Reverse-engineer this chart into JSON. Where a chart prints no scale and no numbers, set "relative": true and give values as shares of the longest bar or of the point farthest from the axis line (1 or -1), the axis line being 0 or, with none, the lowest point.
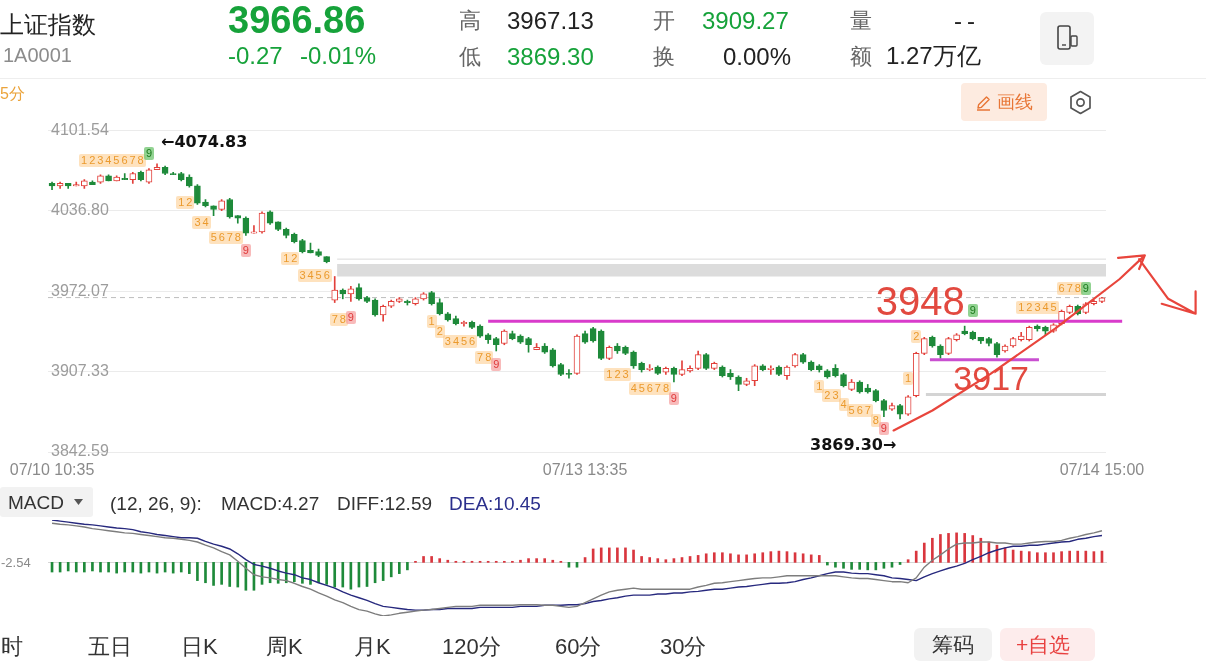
{
  "chart_data": [
    {
      "type": "candlestick",
      "title": "上证指数",
      "subtitle": "1A0001",
      "categories": [
        "07/10 10:35",
        null,
        null,
        null,
        null,
        null,
        null,
        null,
        null,
        null,
        null,
        null,
        null,
        null,
        null,
        null,
        null,
        null,
        null,
        null,
        null,
        null,
        null,
        null,
        null,
        null,
        null,
        null,
        null,
        null,
        null,
        null,
        null,
        null,
        null,
        null,
        null,
        null,
        null,
        null,
        null,
        null,
        null,
        null,
        null,
        null,
        null,
        null,
        null,
        null,
        null,
        null,
        null,
        null,
        null,
        null,
        null,
        null,
        null,
        null,
        null,
        null,
        null,
        null,
        null,
        null,
        "07/13 13:35",
        null,
        null,
        null,
        null,
        null,
        null,
        null,
        null,
        null,
        null,
        null,
        null,
        null,
        null,
        null,
        null,
        null,
        null,
        null,
        null,
        null,
        null,
        null,
        null,
        null,
        null,
        null,
        null,
        null,
        null,
        null,
        null,
        null,
        null,
        null,
        null,
        null,
        null,
        null,
        null,
        null,
        null,
        null,
        null,
        null,
        null,
        null,
        null,
        null,
        null,
        null,
        null,
        null,
        null,
        null,
        null,
        null,
        null,
        null,
        null,
        null,
        null,
        null,
        "07/14 15:00"
      ],
      "ohlc": [
        [
          4059,
          4060,
          4054,
          4057
        ],
        [
          4057,
          4060,
          4055,
          4059
        ],
        [
          4059,
          4059,
          4055,
          4057
        ],
        [
          4057,
          4060,
          4057,
          4058
        ],
        [
          4057,
          4062,
          4055,
          4061
        ],
        [
          4060,
          4061,
          4058,
          4058
        ],
        [
          4060,
          4066,
          4059,
          4065
        ],
        [
          4065,
          4066,
          4061,
          4061
        ],
        [
          4061,
          4065,
          4061,
          4064
        ],
        [
          4063,
          4067,
          4062,
          4062
        ],
        [
          4062,
          4068,
          4059,
          4067
        ],
        [
          4068,
          4069,
          4061,
          4062
        ],
        [
          4060,
          4071,
          4059,
          4070
        ],
        [
          4070,
          4074.83,
          4070,
          4072
        ],
        [
          4072,
          4073,
          4066,
          4067
        ],
        [
          4067,
          4068,
          4066,
          4066
        ],
        [
          4067,
          4068,
          4061,
          4062
        ],
        [
          4064,
          4066,
          4056,
          4057
        ],
        [
          4057,
          4058,
          4042,
          4043
        ],
        [
          4044,
          4046,
          4040,
          4041
        ],
        [
          4041,
          4041,
          4033,
          4038
        ],
        [
          4038,
          4046,
          4037,
          4045
        ],
        [
          4046,
          4047,
          4031,
          4032
        ],
        [
          4033,
          4033,
          4027,
          4031
        ],
        [
          4031,
          4032,
          4017,
          4019
        ],
        [
          4019,
          4025,
          4019,
          4020
        ],
        [
          4020,
          4036,
          4019,
          4035
        ],
        [
          4036,
          4037,
          4026,
          4027
        ],
        [
          4028,
          4028,
          4021,
          4022
        ],
        [
          4022,
          4023,
          4015,
          4017
        ],
        [
          4018,
          4019,
          4011,
          4012
        ],
        [
          4013,
          4014,
          4003,
          4004
        ],
        [
          4005,
          4011,
          4003,
          4003
        ],
        [
          4004,
          4006,
          4000,
          4001
        ],
        [
          4000,
          4000,
          3995,
          3996
        ],
        [
          3965,
          3984,
          3963,
          3973
        ],
        [
          3973,
          3974,
          3966,
          3970
        ],
        [
          3970,
          3976,
          3964,
          3974
        ],
        [
          3975,
          3978,
          3965,
          3966
        ],
        [
          3967,
          3968,
          3963,
          3964
        ],
        [
          3965,
          3966,
          3952,
          3953
        ],
        [
          3953,
          3961,
          3948,
          3960
        ],
        [
          3960,
          3965,
          3959,
          3964
        ],
        [
          3964,
          3967,
          3963,
          3966
        ],
        [
          3964,
          3965,
          3961,
          3963
        ],
        [
          3962,
          3967,
          3961,
          3966
        ],
        [
          3966,
          3971,
          3965,
          3970
        ],
        [
          3971,
          3972,
          3961,
          3962
        ],
        [
          3963,
          3966,
          3953,
          3954
        ],
        [
          3954,
          3955,
          3948,
          3949
        ],
        [
          3950,
          3952,
          3945,
          3946
        ],
        [
          3946,
          3948,
          3944,
          3947
        ],
        [
          3947,
          3948,
          3942,
          3943
        ],
        [
          3944,
          3945,
          3935,
          3936
        ],
        [
          3937,
          3938,
          3930,
          3933
        ],
        [
          3934,
          3935,
          3924,
          3929
        ],
        [
          3930,
          3941,
          3929,
          3940
        ],
        [
          3938,
          3940,
          3933,
          3934
        ],
        [
          3936,
          3937,
          3930,
          3931
        ],
        [
          3934,
          3935,
          3923,
          3929
        ],
        [
          3925,
          3930,
          3925,
          3927
        ],
        [
          3928,
          3930,
          3922,
          3923
        ],
        [
          3925,
          3926,
          3911,
          3912
        ],
        [
          3913,
          3914,
          3904,
          3905
        ],
        [
          3906,
          3909,
          3902,
          3905
        ],
        [
          3906,
          3937,
          3905,
          3936
        ],
        [
          3938,
          3940,
          3930,
          3931
        ],
        [
          3942,
          3943,
          3931,
          3932
        ],
        [
          3940,
          3941,
          3917,
          3918
        ],
        [
          3918,
          3928,
          3917,
          3927
        ],
        [
          3928,
          3930,
          3922,
          3924
        ],
        [
          3927,
          3928,
          3921,
          3922
        ],
        [
          3923,
          3924,
          3910,
          3912
        ],
        [
          3914,
          3915,
          3907,
          3909
        ],
        [
          3909,
          3913,
          3908,
          3910
        ],
        [
          3911,
          3912,
          3905,
          3906
        ],
        [
          3907,
          3911,
          3905,
          3910
        ],
        [
          3910,
          3911,
          3899,
          3905
        ],
        [
          3905,
          3916,
          3904,
          3909
        ],
        [
          3908,
          3912,
          3907,
          3910
        ],
        [
          3910,
          3924,
          3909,
          3921
        ],
        [
          3921,
          3922,
          3909,
          3910
        ],
        [
          3910,
          3915,
          3909,
          3914
        ],
        [
          3911,
          3912,
          3903,
          3904
        ],
        [
          3906,
          3909,
          3901,
          3903
        ],
        [
          3903,
          3904,
          3892,
          3897
        ],
        [
          3897,
          3902,
          3896,
          3900
        ],
        [
          3900,
          3913,
          3896,
          3912
        ],
        [
          3912,
          3913,
          3908,
          3909
        ],
        [
          3909,
          3912,
          3905,
          3910
        ],
        [
          3911,
          3912,
          3904,
          3905
        ],
        [
          3904,
          3912,
          3901,
          3911
        ],
        [
          3912,
          3922,
          3911,
          3921
        ],
        [
          3921,
          3922,
          3914,
          3915
        ],
        [
          3915,
          3916,
          3908,
          3909
        ],
        [
          3912,
          3913,
          3907,
          3909
        ],
        [
          3908,
          3909,
          3902,
          3903
        ],
        [
          3910,
          3913,
          3903,
          3904
        ],
        [
          3905,
          3906,
          3895,
          3896
        ],
        [
          3893,
          3901,
          3892,
          3899
        ],
        [
          3899,
          3900,
          3890,
          3891
        ],
        [
          3894,
          3897,
          3890,
          3891
        ],
        [
          3892,
          3893,
          3883,
          3884
        ],
        [
          3884,
          3885,
          3871,
          3876
        ],
        [
          3877,
          3882,
          3876,
          3880
        ],
        [
          3880,
          3881,
          3869.3,
          3873
        ],
        [
          3873,
          3888,
          3872,
          3887
        ],
        [
          3888,
          3923,
          3887,
          3922
        ],
        [
          3922,
          3935,
          3921,
          3934
        ],
        [
          3935,
          3936,
          3927,
          3928
        ],
        [
          3928,
          3929,
          3918,
          3921
        ],
        [
          3922,
          3935,
          3921,
          3934
        ],
        [
          3933,
          3938,
          3932,
          3937
        ],
        [
          3940,
          3944,
          3937,
          3938
        ],
        [
          3939,
          3940,
          3933,
          3934
        ],
        [
          3935,
          3935,
          3930,
          3932
        ],
        [
          3934,
          3935,
          3928,
          3930
        ],
        [
          3930,
          3931,
          3919,
          3921
        ],
        [
          3924,
          3929,
          3923,
          3928
        ],
        [
          3928,
          3935,
          3927,
          3934
        ],
        [
          3933,
          3939,
          3932,
          3936
        ],
        [
          3933,
          3944,
          3932,
          3943
        ],
        [
          3944,
          3945,
          3940,
          3942
        ],
        [
          3943,
          3944,
          3937,
          3940
        ],
        [
          3940,
          3946,
          3939,
          3945
        ],
        [
          3946,
          3957,
          3945,
          3956
        ],
        [
          3955,
          3961,
          3954,
          3960
        ],
        [
          3960,
          3961,
          3953,
          3954
        ],
        [
          3955,
          3963,
          3954,
          3962
        ],
        [
          3962,
          3965,
          3961,
          3964
        ],
        [
          3964,
          3967.13,
          3963,
          3966.86
        ]
      ],
      "colors": [
        "#1e8a3a",
        "#e2403b",
        "#1e8a3a",
        "#e2403b",
        "#e2403b",
        "#1e8a3a",
        "#e2403b",
        "#1e8a3a",
        "#e2403b",
        "#1e8a3a",
        "#e2403b",
        "#1e8a3a",
        "#e2403b",
        "#e2403b",
        "#1e8a3a",
        "#1e8a3a",
        "#1e8a3a",
        "#1e8a3a",
        "#1e8a3a",
        "#1e8a3a",
        "#1e8a3a",
        "#e2403b",
        "#1e8a3a",
        "#1e8a3a",
        "#1e8a3a",
        "#e2403b",
        "#e2403b",
        "#1e8a3a",
        "#1e8a3a",
        "#1e8a3a",
        "#1e8a3a",
        "#1e8a3a",
        "#1e8a3a",
        "#1e8a3a",
        "#1e8a3a",
        "#e2403b",
        "#1e8a3a",
        "#e2403b",
        "#1e8a3a",
        "#1e8a3a",
        "#1e8a3a",
        "#e2403b",
        "#e2403b",
        "#e2403b",
        "#1e8a3a",
        "#e2403b",
        "#e2403b",
        "#1e8a3a",
        "#1e8a3a",
        "#1e8a3a",
        "#1e8a3a",
        "#e2403b",
        "#1e8a3a",
        "#1e8a3a",
        "#1e8a3a",
        "#1e8a3a",
        "#e2403b",
        "#1e8a3a",
        "#1e8a3a",
        "#1e8a3a",
        "#e2403b",
        "#1e8a3a",
        "#1e8a3a",
        "#1e8a3a",
        "#1e8a3a",
        "#e2403b",
        "#1e8a3a",
        "#1e8a3a",
        "#1e8a3a",
        "#e2403b",
        "#1e8a3a",
        "#1e8a3a",
        "#1e8a3a",
        "#1e8a3a",
        "#e2403b",
        "#1e8a3a",
        "#e2403b",
        "#1e8a3a",
        "#e2403b",
        "#e2403b",
        "#e2403b",
        "#1e8a3a",
        "#e2403b",
        "#1e8a3a",
        "#1e8a3a",
        "#1e8a3a",
        "#e2403b",
        "#e2403b",
        "#1e8a3a",
        "#e2403b",
        "#1e8a3a",
        "#e2403b",
        "#e2403b",
        "#1e8a3a",
        "#1e8a3a",
        "#1e8a3a",
        "#1e8a3a",
        "#1e8a3a",
        "#1e8a3a",
        "#e2403b",
        "#1e8a3a",
        "#1e8a3a",
        "#1e8a3a",
        "#1e8a3a",
        "#e2403b",
        "#1e8a3a",
        "#e2403b",
        "#e2403b",
        "#e2403b",
        "#1e8a3a",
        "#1e8a3a",
        "#e2403b",
        "#e2403b",
        "#1e8a3a",
        "#1e8a3a",
        "#1e8a3a",
        "#1e8a3a",
        "#1e8a3a",
        "#e2403b",
        "#e2403b",
        "#e2403b",
        "#e2403b",
        "#1e8a3a",
        "#1e8a3a",
        "#e2403b",
        "#e2403b",
        "#e2403b",
        "#1e8a3a",
        "#e2403b",
        "#e2403b",
        "#e2403b"
      ],
      "ylim": [
        3842.59,
        4101.54
      ],
      "yticks": [
        4101.54,
        {
          "value": 4036.8,
          "label": "4036.80"
        },
        3972.07,
        3907.33,
        3842.59
      ],
      "grid": "y",
      "ref_lines": [
        {
          "axis": "y",
          "value": 3967,
          "color": "#bdbdbd",
          "line_style": "dashed"
        },
        {
          "axis": "y",
          "value": 3948,
          "label": "3948",
          "color": "#d93bcb"
        },
        {
          "axis": "y",
          "value": 3917,
          "label": "3917",
          "color": "#c94fd0"
        },
        {
          "axis": "y",
          "value": 3889,
          "color": "#d4d4d4"
        },
        {
          "axis": "y",
          "value": 3998,
          "color": "#dadada"
        }
      ],
      "bands": [
        {
          "axis": "y",
          "from": 3984,
          "to": 3994,
          "color": "#dcdcdc"
        }
      ],
      "annotations": [
        "3966.86",
        "-0.27",
        "-0.01%",
        "高",
        "3967.13",
        "低",
        "3869.30",
        "开",
        "3909.27",
        "换",
        "0.00%",
        "量",
        "--",
        "额",
        "1.27万亿",
        "5分",
        "画线",
        "←4074.83",
        "3869.30→",
        "12345678",
        "9",
        "12",
        "34",
        "5678",
        "9",
        "12",
        "3456",
        "78",
        "9",
        "1",
        "2",
        "3456",
        "78",
        "9",
        "123",
        "45678",
        "9",
        "1",
        "23",
        "4",
        "567",
        "8",
        "9",
        "1",
        "2",
        "9",
        "12345",
        "678",
        "9"
      ]
    },
    {
      "type": "bar",
      "title": "MACD",
      "relative": true,
      "categories": [
        null,
        null,
        null,
        null,
        null,
        null,
        null,
        null,
        null,
        null,
        null,
        null,
        null,
        null,
        null,
        null,
        null,
        null,
        null,
        null,
        null,
        null,
        null,
        null,
        null,
        null,
        null,
        null,
        null,
        null,
        null,
        null,
        null,
        null,
        null,
        null,
        null,
        null,
        null,
        null,
        null,
        null,
        null,
        null,
        null,
        null,
        null,
        null,
        null,
        null,
        null,
        null,
        null,
        null,
        null,
        null,
        null,
        null,
        null,
        null,
        null,
        null,
        null,
        null,
        null,
        null,
        null,
        null,
        null,
        null,
        null,
        null,
        null,
        null,
        null,
        null,
        null,
        null,
        null,
        null,
        null,
        null,
        null,
        null,
        null,
        null,
        null,
        null,
        null,
        null,
        null,
        null,
        null,
        null,
        null,
        null,
        null,
        null,
        null,
        null,
        null,
        null,
        null,
        null,
        null,
        null,
        null,
        null,
        null,
        null,
        null,
        null,
        null,
        null,
        null,
        null,
        null,
        null,
        null,
        null,
        null,
        null,
        null,
        null,
        null,
        null,
        null,
        null,
        null,
        null,
        null
      ],
      "series": [
        {
          "type": "bar",
          "colors": [
            "#1e8a3a",
            "#1e8a3a",
            "#1e8a3a",
            "#1e8a3a",
            "#1e8a3a",
            "#1e8a3a",
            "#1e8a3a",
            "#1e8a3a",
            "#1e8a3a",
            "#1e8a3a",
            "#1e8a3a",
            "#1e8a3a",
            "#1e8a3a",
            "#1e8a3a",
            "#1e8a3a",
            "#1e8a3a",
            "#1e8a3a",
            "#1e8a3a",
            "#1e8a3a",
            "#1e8a3a",
            "#1e8a3a",
            "#1e8a3a",
            "#1e8a3a",
            "#1e8a3a",
            "#1e8a3a",
            "#1e8a3a",
            "#1e8a3a",
            "#1e8a3a",
            "#1e8a3a",
            "#1e8a3a",
            "#1e8a3a",
            "#1e8a3a",
            "#1e8a3a",
            "#1e8a3a",
            "#1e8a3a",
            "#1e8a3a",
            "#1e8a3a",
            "#1e8a3a",
            "#1e8a3a",
            "#1e8a3a",
            "#1e8a3a",
            "#1e8a3a",
            "#1e8a3a",
            "#1e8a3a",
            "#1e8a3a",
            "#d9363e",
            "#d9363e",
            "#d9363e",
            "#d9363e",
            "#d9363e",
            "#d9363e",
            "#d9363e",
            "#d9363e",
            "#d9363e",
            "#d9363e",
            "#d9363e",
            "#d9363e",
            "#d9363e",
            "#d9363e",
            "#d9363e",
            "#d9363e",
            "#d9363e",
            "#d9363e",
            "#d9363e",
            "#1e8a3a",
            "#1e8a3a",
            "#d9363e",
            "#d9363e",
            "#d9363e",
            "#d9363e",
            "#d9363e",
            "#d9363e",
            "#d9363e",
            "#d9363e",
            "#d9363e",
            "#d9363e",
            "#d9363e",
            "#d9363e",
            "#d9363e",
            "#d9363e",
            "#d9363e",
            "#d9363e",
            "#d9363e",
            "#d9363e",
            "#d9363e",
            "#d9363e",
            "#d9363e",
            "#d9363e",
            "#d9363e",
            "#d9363e",
            "#d9363e",
            "#d9363e",
            "#d9363e",
            "#d9363e",
            "#d9363e",
            "#d9363e",
            "#1e8a3a",
            "#1e8a3a",
            "#1e8a3a",
            "#1e8a3a",
            "#1e8a3a",
            "#1e8a3a",
            "#1e8a3a",
            "#1e8a3a",
            "#1e8a3a",
            "#1e8a3a",
            "#d9363e",
            "#d9363e",
            "#d9363e",
            "#d9363e",
            "#d9363e",
            "#d9363e",
            "#d9363e",
            "#d9363e",
            "#d9363e",
            "#d9363e",
            "#d9363e",
            "#d9363e",
            "#d9363e",
            "#d9363e",
            "#d9363e",
            "#d9363e",
            "#d9363e",
            "#d9363e",
            "#d9363e",
            "#d9363e",
            "#d9363e",
            "#d9363e",
            "#d9363e",
            "#d9363e",
            "#d9363e"
          ],
          "values": [
            -0.18,
            -0.18,
            -0.16,
            -0.18,
            -0.18,
            -0.16,
            -0.18,
            -0.18,
            -0.2,
            -0.18,
            -0.18,
            -0.2,
            -0.18,
            -0.2,
            -0.18,
            -0.2,
            -0.18,
            -0.21,
            -0.34,
            -0.38,
            -0.43,
            -0.41,
            -0.45,
            -0.46,
            -0.52,
            -0.52,
            -0.41,
            -0.38,
            -0.39,
            -0.38,
            -0.36,
            -0.39,
            -0.41,
            -0.38,
            -0.41,
            -0.46,
            -0.46,
            -0.5,
            -0.46,
            -0.45,
            -0.38,
            -0.34,
            -0.27,
            -0.21,
            -0.14,
            0.02,
            0.11,
            0.11,
            0.07,
            0.04,
            0.02,
            0.02,
            0.02,
            0.02,
            0.02,
            0.02,
            0.02,
            0.02,
            0.04,
            0.07,
            0.07,
            0.07,
            0.04,
            0.02,
            -0.09,
            -0.09,
            0.09,
            0.25,
            0.27,
            0.27,
            0.27,
            0.27,
            0.23,
            0.11,
            0.09,
            0.07,
            0.05,
            0.07,
            0.09,
            0.11,
            0.13,
            0.16,
            0.18,
            0.18,
            0.16,
            0.14,
            0.14,
            0.16,
            0.18,
            0.2,
            0.21,
            0.2,
            0.18,
            0.16,
            0.14,
            0.13,
            -0.05,
            -0.09,
            -0.11,
            -0.13,
            -0.13,
            -0.14,
            -0.14,
            -0.11,
            -0.09,
            -0.04,
            0.05,
            0.21,
            0.36,
            0.45,
            0.52,
            0.54,
            0.55,
            0.54,
            0.5,
            0.45,
            0.38,
            0.32,
            0.27,
            0.23,
            0.21,
            0.2,
            0.18,
            0.18,
            0.18,
            0.2,
            0.21,
            0.21,
            0.21,
            0.2,
            0.21
          ]
        },
        {
          "type": "line",
          "color": "#7d7d7d",
          "values": [
            0.73,
            0.71,
            0.7,
            0.68,
            0.66,
            0.63,
            0.61,
            0.59,
            0.57,
            0.55,
            0.54,
            0.52,
            0.5,
            0.48,
            0.46,
            0.45,
            0.43,
            0.41,
            0.38,
            0.32,
            0.27,
            0.2,
            0.14,
            0.02,
            -0.11,
            -0.23,
            -0.27,
            -0.29,
            -0.32,
            -0.34,
            -0.39,
            -0.45,
            -0.5,
            -0.57,
            -0.63,
            -0.7,
            -0.75,
            -0.82,
            -0.88,
            -0.91,
            -0.96,
            -1,
            -0.98,
            -0.95,
            -0.93,
            -0.91,
            -0.89,
            -0.88,
            -0.86,
            -0.84,
            -0.82,
            -0.82,
            -0.82,
            -0.8,
            -0.8,
            -0.8,
            -0.8,
            -0.8,
            -0.79,
            -0.79,
            -0.79,
            -0.8,
            -0.8,
            -0.82,
            -0.84,
            -0.82,
            -0.75,
            -0.68,
            -0.61,
            -0.55,
            -0.52,
            -0.5,
            -0.48,
            -0.5,
            -0.5,
            -0.5,
            -0.5,
            -0.5,
            -0.5,
            -0.5,
            -0.46,
            -0.43,
            -0.39,
            -0.38,
            -0.36,
            -0.34,
            -0.32,
            -0.3,
            -0.29,
            -0.29,
            -0.27,
            -0.25,
            -0.25,
            -0.25,
            -0.25,
            -0.25,
            -0.25,
            -0.25,
            -0.27,
            -0.29,
            -0.3,
            -0.3,
            -0.32,
            -0.34,
            -0.36,
            -0.36,
            -0.38,
            -0.29,
            -0.09,
            0.04,
            0.14,
            0.25,
            0.34,
            0.36,
            0.36,
            0.38,
            0.38,
            0.36,
            0.36,
            0.34,
            0.34,
            0.36,
            0.38,
            0.39,
            0.39,
            0.41,
            0.45,
            0.48,
            0.52,
            0.55,
            0.59
          ]
        },
        {
          "type": "line",
          "color": "#27297e",
          "values": [
            0.79,
            0.77,
            0.75,
            0.73,
            0.71,
            0.7,
            0.68,
            0.66,
            0.64,
            0.63,
            0.61,
            0.57,
            0.55,
            0.52,
            0.5,
            0.48,
            0.46,
            0.46,
            0.45,
            0.39,
            0.34,
            0.3,
            0.25,
            0.16,
            0.05,
            -0.04,
            -0.07,
            -0.11,
            -0.16,
            -0.2,
            -0.23,
            -0.29,
            -0.32,
            -0.38,
            -0.43,
            -0.48,
            -0.55,
            -0.61,
            -0.66,
            -0.71,
            -0.77,
            -0.82,
            -0.84,
            -0.86,
            -0.88,
            -0.89,
            -0.89,
            -0.88,
            -0.88,
            -0.86,
            -0.86,
            -0.86,
            -0.86,
            -0.84,
            -0.84,
            -0.84,
            -0.84,
            -0.84,
            -0.82,
            -0.82,
            -0.82,
            -0.8,
            -0.8,
            -0.8,
            -0.79,
            -0.79,
            -0.77,
            -0.73,
            -0.71,
            -0.68,
            -0.66,
            -0.63,
            -0.61,
            -0.61,
            -0.61,
            -0.59,
            -0.59,
            -0.57,
            -0.57,
            -0.55,
            -0.54,
            -0.52,
            -0.5,
            -0.5,
            -0.48,
            -0.46,
            -0.45,
            -0.43,
            -0.41,
            -0.39,
            -0.39,
            -0.38,
            -0.36,
            -0.32,
            -0.29,
            -0.25,
            -0.21,
            -0.18,
            -0.18,
            -0.2,
            -0.21,
            -0.21,
            -0.23,
            -0.25,
            -0.29,
            -0.3,
            -0.32,
            -0.34,
            -0.27,
            -0.21,
            -0.16,
            -0.11,
            -0.07,
            -0.02,
            0.05,
            0.11,
            0.18,
            0.23,
            0.27,
            0.3,
            0.3,
            0.32,
            0.32,
            0.34,
            0.36,
            0.38,
            0.39,
            0.43,
            0.45,
            0.48,
            0.5
          ]
        }
      ],
      "annotations": [
        "(12, 26, 9):",
        "MACD:4.27",
        "DIFF:12.59",
        "DEA:10.45",
        "-2.54",
        "时",
        "五日",
        "日K",
        "周K",
        "月K",
        "120分",
        "60分",
        "30分",
        "筹码",
        "+自选"
      ]
    }
  ]
}
